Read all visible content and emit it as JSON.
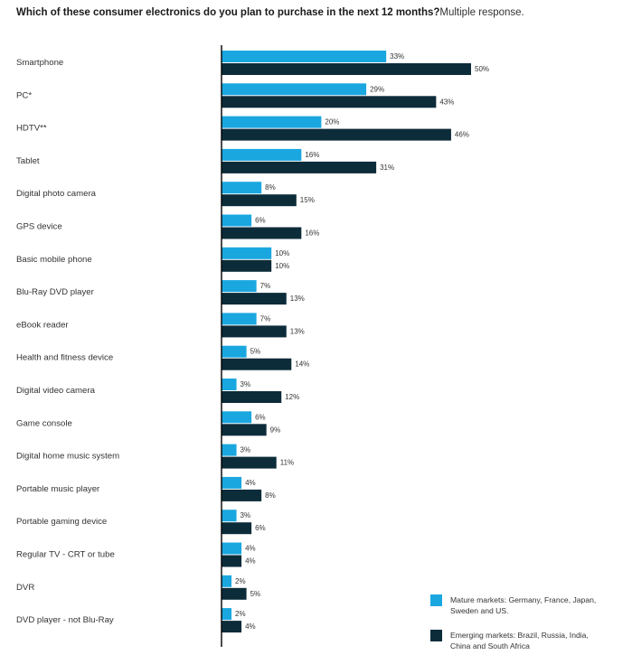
{
  "title": {
    "bold": "Which of these consumer electronics do you plan to purchase in the next 12 months?",
    "note": "Multiple response."
  },
  "colors": {
    "mature": "#1aa7e0",
    "emerging": "#0d2c3a",
    "axis": "#000000",
    "text": "#333333"
  },
  "legend": {
    "mature": "Mature markets: Germany, France, Japan, Sweden and US.",
    "emerging": "Emerging markets: Brazil, Russia, India, China and South Africa"
  },
  "chart_data": {
    "type": "bar",
    "orientation": "horizontal",
    "categories": [
      "Smartphone",
      "PC*",
      "HDTV**",
      "Tablet",
      "Digital photo camera",
      "GPS device",
      "Basic mobile phone",
      "Blu-Ray DVD player",
      "eBook reader",
      "Health and fitness device",
      "Digital video camera",
      "Game console",
      "Digital home music system",
      "Portable music player",
      "Portable gaming device",
      "Regular TV - CRT or tube",
      "DVR",
      "DVD player - not Blu-Ray"
    ],
    "series": [
      {
        "name": "Mature markets: Germany, France, Japan, Sweden and US.",
        "values": [
          33,
          29,
          20,
          16,
          8,
          6,
          10,
          7,
          7,
          5,
          3,
          6,
          3,
          4,
          3,
          4,
          2,
          2
        ]
      },
      {
        "name": "Emerging markets: Brazil, Russia, India, China and South Africa",
        "values": [
          50,
          43,
          46,
          31,
          15,
          16,
          10,
          13,
          13,
          14,
          12,
          9,
          11,
          8,
          6,
          4,
          5,
          4
        ]
      }
    ],
    "value_labels": {
      "mature": [
        "33%",
        "29%",
        "20%",
        "16%",
        "8%",
        "6%",
        "10%",
        "7%",
        "7%",
        "5%",
        "3%",
        "6%",
        "3%",
        "4%",
        "3%",
        "4%",
        "2%",
        "2%"
      ],
      "emerging": [
        "50%",
        "43%",
        "46%",
        "31%",
        "15%",
        "16%",
        "10%",
        "13%",
        "13%",
        "14%",
        "12%",
        "9%",
        "11%",
        "8%",
        "6%",
        "4%",
        "5%",
        "4%"
      ]
    },
    "xlim": [
      0,
      55
    ],
    "grid": false,
    "legend_position": "bottom-right"
  }
}
